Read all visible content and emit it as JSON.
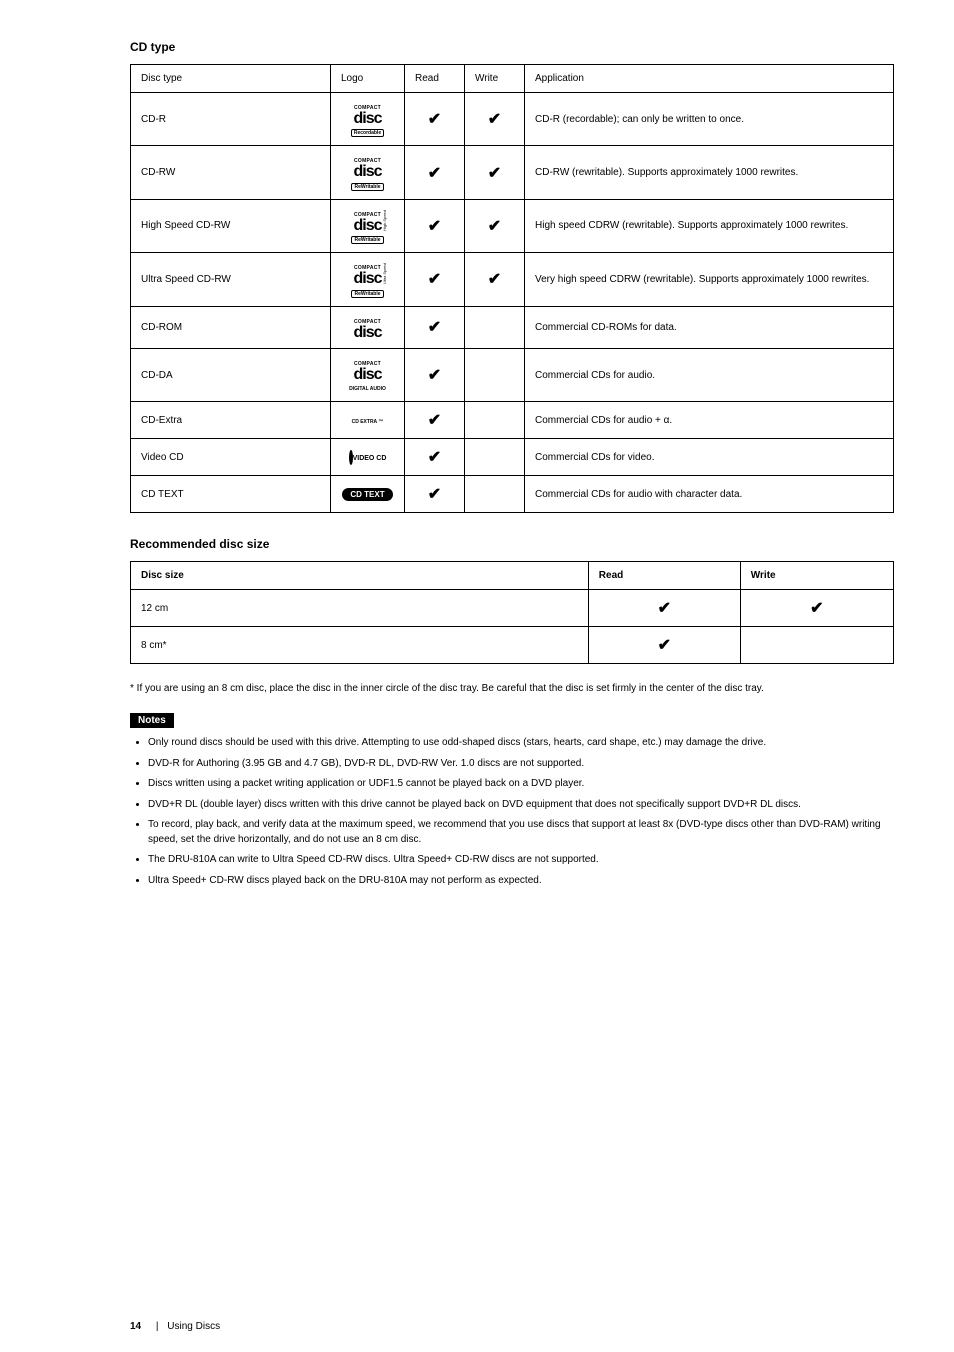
{
  "cd_section": {
    "title": "CD type",
    "headers": {
      "disc_type": "Disc type",
      "logo": "Logo",
      "read": "Read",
      "write": "Write",
      "application": "Application"
    },
    "rows": [
      {
        "type": "CD-R",
        "logo": "cdr",
        "read": true,
        "write": true,
        "application": "CD-R (recordable); can only be written to once."
      },
      {
        "type": "CD-RW",
        "logo": "cdrw",
        "read": true,
        "write": true,
        "application": "CD-RW (rewritable). Supports approximately 1000 rewrites."
      },
      {
        "type": "High Speed CD-RW",
        "logo": "hscdrw",
        "read": true,
        "write": true,
        "application": "High speed CDRW (rewritable). Supports approximately 1000 rewrites."
      },
      {
        "type": "Ultra Speed CD-RW",
        "logo": "uscdrw",
        "read": true,
        "write": true,
        "application": "Very high speed CDRW (rewritable). Supports approximately 1000 rewrites."
      },
      {
        "type": "CD-ROM",
        "logo": "cdrom",
        "read": true,
        "write": false,
        "application": "Commercial CD-ROMs for data."
      },
      {
        "type": "CD-DA",
        "logo": "cdda",
        "read": true,
        "write": false,
        "application": "Commercial CDs for audio."
      },
      {
        "type": "CD-Extra",
        "logo": "cdextra",
        "read": true,
        "write": false,
        "application": "Commercial CDs for audio + α."
      },
      {
        "type": "Video CD",
        "logo": "videocd",
        "read": true,
        "write": false,
        "application": "Commercial CDs for video."
      },
      {
        "type": "CD TEXT",
        "logo": "cdtext",
        "read": true,
        "write": false,
        "application": "Commercial CDs for audio with character data."
      }
    ]
  },
  "size_section": {
    "title": "Recommended disc size",
    "headers": {
      "size": "Disc size",
      "read": "Read",
      "write": "Write"
    },
    "rows": [
      {
        "size": "12 cm",
        "read": true,
        "write": true
      },
      {
        "size": "8 cm*",
        "read": true,
        "write": false
      }
    ],
    "footnote": "* If you are using an 8 cm disc, place the disc in the inner circle of the disc tray. Be careful that the disc is set firmly in the center of the disc tray."
  },
  "notes": {
    "label": "Notes",
    "items": [
      "Only round discs should be used with this drive. Attempting to use odd-shaped discs (stars, hearts, card shape, etc.) may damage the drive.",
      "DVD-R for Authoring (3.95 GB and 4.7 GB), DVD-R DL, DVD-RW Ver. 1.0 discs are not supported.",
      "Discs written using a packet writing application or UDF1.5 cannot be played back on a DVD player.",
      "DVD+R DL (double layer) discs written with this drive cannot be played back on DVD equipment that does not specifically support DVD+R DL discs.",
      "To record, play back, and verify data at the maximum speed, we recommend that you use discs that support at least 8x (DVD-type discs other than DVD-RAM) writing speed, set the drive horizontally, and do not use an 8 cm disc.",
      "The DRU-810A can write to Ultra Speed CD-RW discs. Ultra Speed+ CD-RW discs are not supported.",
      "Ultra Speed+ CD-RW discs played back on the DRU-810A may not perform as expected."
    ]
  },
  "page": {
    "number": "14",
    "title": "Using Discs"
  }
}
